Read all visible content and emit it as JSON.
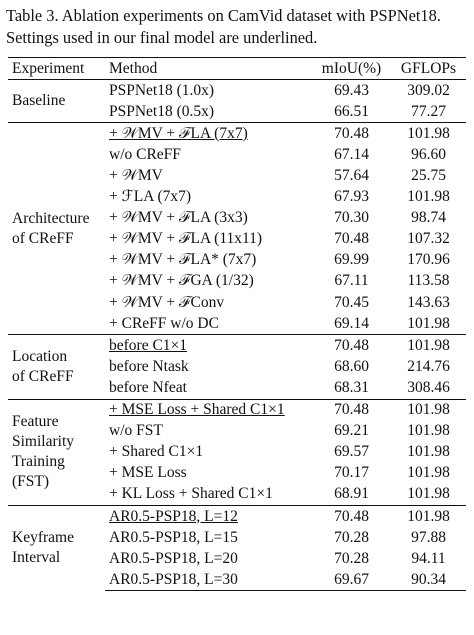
{
  "caption": {
    "line1": "Table 3. Ablation experiments on CamVid dataset with PSPNet18.",
    "line2": "Settings used in our final model are underlined."
  },
  "headers": {
    "experiment": "Experiment",
    "method": "Method",
    "miou": "mIoU(%)",
    "gflops": "GFLOPs"
  },
  "groups": [
    {
      "label": "Baseline",
      "rows": [
        {
          "method": "PSPNet18 (1.0x)",
          "miou": "69.43",
          "gflops": "309.02"
        },
        {
          "method": "PSPNet18 (0.5x)",
          "miou": "66.51",
          "gflops": "77.27"
        }
      ]
    },
    {
      "label_line1": "Architecture",
      "label_line2": "of CReFF",
      "rows": [
        {
          "method": "+ 𝒲MV + ℱLA (7x7)",
          "miou": "70.48",
          "gflops": "101.98"
        },
        {
          "method": "w/o CReFF",
          "miou": "67.14",
          "gflops": "96.60"
        },
        {
          "method": "+ 𝒲MV",
          "miou": "57.64",
          "gflops": "25.75"
        },
        {
          "method": "+ ℱLA (7x7)",
          "miou": "67.93",
          "gflops": "101.98"
        },
        {
          "method": "+ 𝒲MV + ℱLA (3x3)",
          "miou": "70.30",
          "gflops": "98.74"
        },
        {
          "method": "+ 𝒲MV + ℱLA (11x11)",
          "miou": "70.48",
          "gflops": "107.32"
        },
        {
          "method": "+ 𝒲MV + ℱLA* (7x7)",
          "miou": "69.99",
          "gflops": "170.96"
        },
        {
          "method": "+ 𝒲MV + ℱGA (1/32)",
          "miou": "67.11",
          "gflops": "113.58"
        },
        {
          "method": "+ 𝒲MV + ℱConv",
          "miou": "70.45",
          "gflops": "143.63"
        },
        {
          "method": "+ CReFF w/o DC",
          "miou": "69.14",
          "gflops": "101.98"
        }
      ]
    },
    {
      "label_line1": "Location",
      "label_line2": "of CReFF",
      "rows": [
        {
          "method": "before C1×1",
          "miou": "70.48",
          "gflops": "101.98"
        },
        {
          "method": "before Ntask",
          "miou": "68.60",
          "gflops": "214.76"
        },
        {
          "method": "before Nfeat",
          "miou": "68.31",
          "gflops": "308.46"
        }
      ]
    },
    {
      "label_line1": "Feature",
      "label_line2": "Similarity",
      "label_line3": "Training",
      "label_line4": "(FST)",
      "rows": [
        {
          "method": "+ MSE Loss + Shared C1×1",
          "miou": "70.48",
          "gflops": "101.98"
        },
        {
          "method": "w/o FST",
          "miou": "69.21",
          "gflops": "101.98"
        },
        {
          "method": "+ Shared C1×1",
          "miou": "69.57",
          "gflops": "101.98"
        },
        {
          "method": "+ MSE Loss",
          "miou": "70.17",
          "gflops": "101.98"
        },
        {
          "method": "+ KL Loss + Shared C1×1",
          "miou": "68.91",
          "gflops": "101.98"
        }
      ]
    },
    {
      "label_line1": "Keyframe",
      "label_line2": "Interval",
      "rows": [
        {
          "method": "AR0.5-PSP18, L=12",
          "miou": "70.48",
          "gflops": "101.98"
        },
        {
          "method": "AR0.5-PSP18, L=15",
          "miou": "70.28",
          "gflops": "97.88"
        },
        {
          "method": "AR0.5-PSP18, L=20",
          "miou": "70.28",
          "gflops": "94.11"
        },
        {
          "method": "AR0.5-PSP18, L=30",
          "miou": "69.67",
          "gflops": "90.34"
        }
      ]
    }
  ]
}
